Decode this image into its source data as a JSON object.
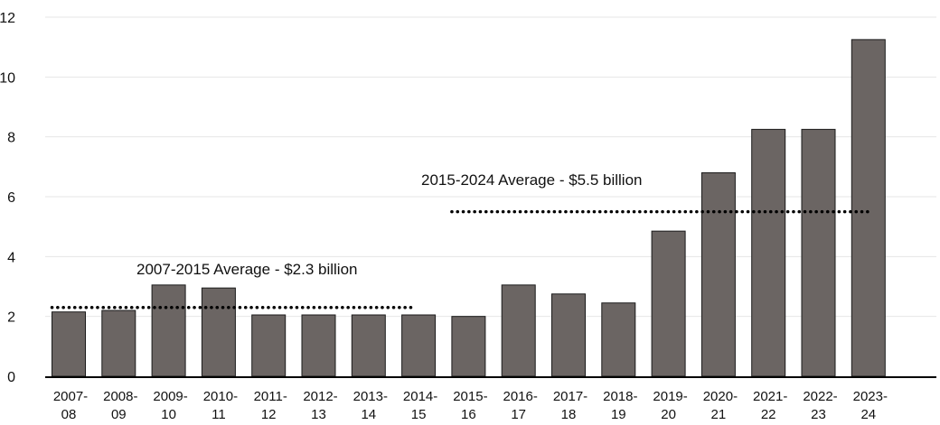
{
  "chart_data": {
    "type": "bar",
    "categories": [
      [
        "2007-",
        "08"
      ],
      [
        "2008-",
        "09"
      ],
      [
        "2009-",
        "10"
      ],
      [
        "2010-",
        "11"
      ],
      [
        "2011-",
        "12"
      ],
      [
        "2012-",
        "13"
      ],
      [
        "2013-",
        "14"
      ],
      [
        "2014-",
        "15"
      ],
      [
        "2015-",
        "16"
      ],
      [
        "2016-",
        "17"
      ],
      [
        "2017-",
        "18"
      ],
      [
        "2018-",
        "19"
      ],
      [
        "2019-",
        "20"
      ],
      [
        "2020-",
        "21"
      ],
      [
        "2021-",
        "22"
      ],
      [
        "2022-",
        "23"
      ],
      [
        "2023-",
        "24"
      ]
    ],
    "values": [
      2.15,
      2.2,
      3.05,
      2.95,
      2.05,
      2.05,
      2.05,
      2.05,
      2.0,
      3.05,
      2.75,
      2.45,
      4.85,
      6.8,
      8.25,
      8.25,
      11.25
    ],
    "ylim": [
      0,
      12
    ],
    "yticks": [
      0,
      2,
      4,
      6,
      8,
      10,
      12
    ],
    "grid": true,
    "bar_color": "#6b6563",
    "averages": [
      {
        "label": "2007-2015 Average - $2.3 billion",
        "value": 2.3,
        "from_index": 0,
        "to_index": 7
      },
      {
        "label": "2015-2024 Average - $5.5 billion",
        "value": 5.5,
        "from_index": 8,
        "to_index": 16
      }
    ]
  }
}
